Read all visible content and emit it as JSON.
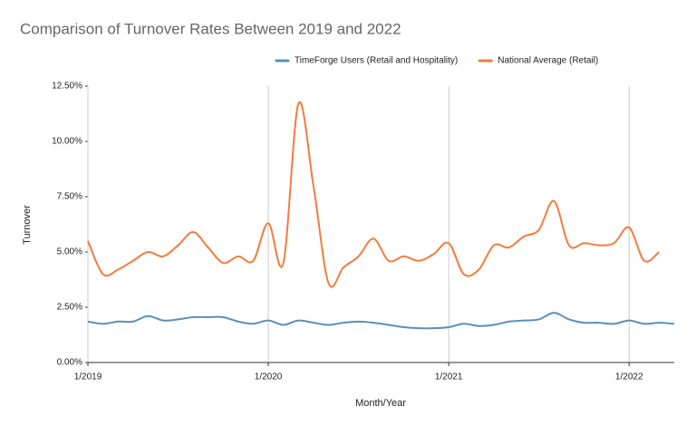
{
  "chart_data": {
    "type": "line",
    "title": "Comparison of Turnover Rates Between 2019 and 2022",
    "x_label": "Month/Year",
    "y_label": "Turnover",
    "categories": [
      "1/2019",
      null,
      null,
      null,
      null,
      null,
      null,
      null,
      null,
      null,
      null,
      null,
      "1/2020",
      null,
      null,
      null,
      null,
      null,
      null,
      null,
      null,
      null,
      null,
      null,
      "1/2021",
      null,
      null,
      null,
      null,
      null,
      null,
      null,
      null,
      null,
      null,
      null,
      "1/2022",
      null,
      null,
      null
    ],
    "series": [
      {
        "name": "TimeForge Users (Retail and Hospitality)",
        "color": "#5b8fb9",
        "values": [
          1.85,
          1.75,
          1.85,
          1.85,
          2.1,
          1.9,
          1.95,
          2.05,
          2.05,
          2.05,
          1.85,
          1.75,
          1.9,
          1.7,
          1.9,
          1.8,
          1.7,
          1.8,
          1.85,
          1.8,
          1.7,
          1.6,
          1.55,
          1.55,
          1.6,
          1.75,
          1.65,
          1.7,
          1.85,
          1.9,
          1.95,
          2.25,
          1.95,
          1.8,
          1.8,
          1.75,
          1.9,
          1.75,
          1.8,
          1.75
        ]
      },
      {
        "name": "National Average (Retail)",
        "color": "#f47c3c",
        "values": [
          5.5,
          4.0,
          4.2,
          4.6,
          5.0,
          4.8,
          5.3,
          5.9,
          5.2,
          4.5,
          4.8,
          4.6,
          6.3,
          4.5,
          11.7,
          8.0,
          3.6,
          4.3,
          4.8,
          5.6,
          4.6,
          4.8,
          4.6,
          4.9,
          5.4,
          4.0,
          4.2,
          5.3,
          5.2,
          5.7,
          6.0,
          7.3,
          5.3,
          5.4,
          5.3,
          5.4,
          6.1,
          4.6,
          5.0,
          null
        ]
      }
    ],
    "ylim": [
      0,
      12.5
    ],
    "yticks": [
      {
        "value": 0,
        "label": "0.00%"
      },
      {
        "value": 2.5,
        "label": "2.50%"
      },
      {
        "value": 5,
        "label": "5.00%"
      },
      {
        "value": 7.5,
        "label": "7.50%"
      },
      {
        "value": 10,
        "label": "10.00%"
      },
      {
        "value": 12.5,
        "label": "12.50%"
      }
    ],
    "x_grid": true,
    "smooth": true,
    "legend": "top"
  }
}
